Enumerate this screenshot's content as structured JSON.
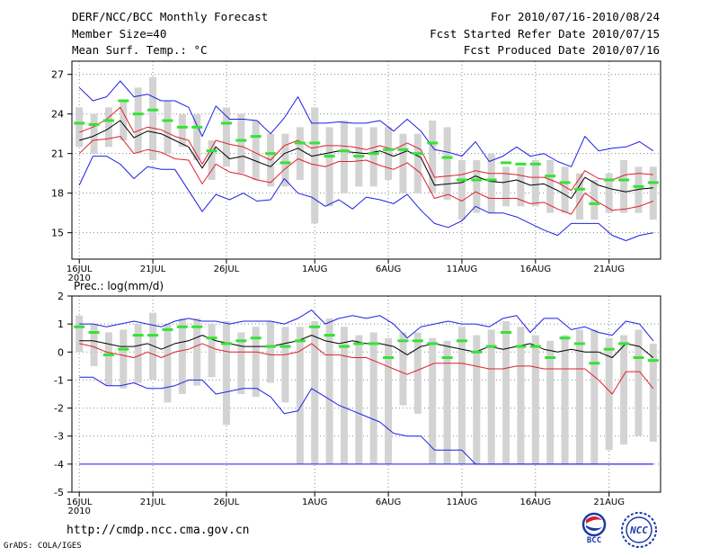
{
  "header": {
    "title": "DERF/NCC/BCC Monthly Forecast",
    "member_size": "Member Size=40",
    "variable": "Mean Surf. Temp.: °C",
    "period": "For 2010/07/16-2010/08/24",
    "started": "Fcst Started Refer Date 2010/07/15",
    "produced": "Fcst Produced Date 2010/07/16"
  },
  "footer": {
    "url": "http://cmdp.ncc.cma.gov.cn",
    "credit": "GrADS: COLA/IGES",
    "logo_bcc": "BCC",
    "logo_ncc": "NCC"
  },
  "colors": {
    "box": "#d3d3d4",
    "ensmean": "#000000",
    "spread": "#e0202c",
    "envelope": "#1f1fe6",
    "observed": "#34e334",
    "grid": "#888888"
  },
  "chart_data": [
    {
      "type": "box",
      "title": "Mean Surf. Temp.: °C",
      "ylim": [
        13,
        28
      ],
      "yticks": [
        15,
        18,
        21,
        24,
        27
      ],
      "xlim": [
        0.5,
        40.5
      ],
      "xticks": [
        {
          "day": 1,
          "label": "16JUL",
          "sublabel": "2010"
        },
        {
          "day": 6,
          "label": "21JUL"
        },
        {
          "day": 11,
          "label": "26JUL"
        },
        {
          "day": 17,
          "label": "1AUG"
        },
        {
          "day": 22,
          "label": "6AUG"
        },
        {
          "day": 27,
          "label": "11AUG"
        },
        {
          "day": 32,
          "label": "16AUG"
        },
        {
          "day": 37,
          "label": "21AUG"
        }
      ],
      "box_low": [
        21.5,
        21.0,
        21.5,
        22.0,
        21.0,
        20.5,
        21.0,
        21.5,
        20.5,
        19.0,
        20.0,
        19.5,
        19.0,
        18.5,
        18.5,
        19.0,
        15.7,
        17.0,
        18.0,
        18.5,
        18.5,
        19.0,
        18.0,
        18.0,
        18.0,
        17.5,
        16.0,
        16.5,
        16.5,
        17.0,
        17.0,
        17.0,
        16.5,
        16.5,
        16.0,
        16.0,
        16.5,
        16.5,
        16.5,
        16.0
      ],
      "box_high": [
        24.5,
        24.0,
        24.5,
        25.0,
        26.0,
        26.8,
        25.0,
        24.0,
        24.0,
        22.0,
        24.5,
        24.0,
        23.5,
        22.5,
        22.5,
        23.0,
        24.5,
        23.0,
        23.5,
        23.0,
        23.0,
        23.0,
        22.5,
        22.5,
        23.5,
        23.0,
        20.5,
        20.5,
        21.0,
        20.0,
        20.0,
        20.5,
        20.5,
        20.0,
        19.5,
        19.0,
        19.5,
        20.5,
        20.0,
        20.0
      ],
      "series": [
        {
          "name": "Upper envelope",
          "values": [
            26.0,
            25.0,
            25.3,
            26.5,
            25.3,
            25.5,
            25.0,
            25.0,
            24.5,
            22.3,
            24.6,
            23.6,
            23.6,
            23.5,
            22.5,
            23.7,
            25.3,
            23.3,
            23.3,
            23.4,
            23.3,
            23.3,
            23.5,
            22.7,
            23.6,
            22.7,
            21.3,
            21.1,
            20.8,
            21.9,
            20.4,
            20.8,
            21.5,
            20.8,
            21.0,
            20.4,
            20.0,
            22.3,
            21.2,
            21.4,
            21.5,
            21.9,
            21.2
          ]
        },
        {
          "name": "Upper spread",
          "values": [
            22.6,
            23.0,
            23.6,
            24.5,
            22.6,
            23.0,
            22.8,
            22.3,
            22.0,
            20.2,
            22.0,
            21.7,
            21.5,
            21.0,
            20.5,
            21.6,
            22.0,
            21.4,
            21.6,
            21.6,
            21.5,
            21.3,
            21.6,
            21.3,
            21.8,
            21.3,
            19.2,
            19.3,
            19.4,
            19.7,
            19.5,
            19.5,
            19.4,
            19.2,
            19.2,
            18.8,
            18.2,
            19.7,
            19.1,
            19.0,
            19.4,
            19.5,
            19.4
          ]
        },
        {
          "name": "Ensemble mean",
          "values": [
            22.0,
            22.3,
            22.8,
            23.5,
            22.2,
            22.7,
            22.5,
            22.0,
            21.5,
            19.9,
            21.5,
            20.6,
            20.8,
            20.4,
            20.0,
            21.0,
            21.4,
            20.8,
            21.0,
            21.2,
            21.1,
            21.0,
            21.2,
            20.8,
            21.2,
            20.7,
            18.6,
            18.7,
            18.8,
            19.3,
            18.9,
            18.8,
            19.0,
            18.6,
            18.7,
            18.2,
            17.6,
            19.2,
            18.6,
            18.3,
            18.1,
            18.3,
            18.4
          ]
        },
        {
          "name": "Lower spread",
          "values": [
            21.0,
            22.0,
            22.1,
            22.3,
            21.0,
            21.3,
            21.1,
            20.6,
            20.5,
            18.7,
            20.2,
            19.6,
            19.4,
            19.0,
            18.8,
            19.8,
            20.6,
            20.2,
            20.0,
            20.4,
            20.4,
            20.5,
            20.1,
            19.8,
            20.3,
            19.5,
            17.6,
            17.9,
            17.4,
            18.1,
            17.6,
            17.6,
            17.6,
            17.2,
            17.3,
            16.8,
            16.4,
            18.0,
            17.3,
            16.7,
            16.8,
            17.0,
            17.4
          ]
        },
        {
          "name": "Lower envelope",
          "values": [
            18.6,
            20.8,
            20.8,
            20.2,
            19.1,
            20.0,
            19.8,
            19.8,
            18.2,
            16.6,
            17.9,
            17.5,
            18.0,
            17.4,
            17.5,
            19.1,
            18.0,
            17.7,
            17.0,
            17.5,
            16.8,
            17.7,
            17.5,
            17.2,
            17.9,
            16.7,
            15.7,
            15.4,
            15.9,
            17.0,
            16.5,
            16.5,
            16.2,
            15.7,
            15.2,
            14.8,
            15.7,
            15.7,
            15.7,
            14.8,
            14.4,
            14.8,
            15.0
          ]
        }
      ],
      "observed": [
        23.3,
        23.2,
        23.5,
        25.0,
        24.0,
        24.3,
        23.5,
        23.0,
        23.0,
        21.2,
        23.3,
        22.0,
        22.3,
        21.0,
        20.3,
        21.8,
        21.8,
        20.8,
        21.2,
        20.8,
        21.0,
        21.3,
        21.3,
        21.0,
        21.8,
        20.7,
        19.0,
        19.0,
        19.0,
        20.3,
        20.2,
        20.2,
        19.3,
        18.8,
        18.3,
        17.2,
        19.0,
        19.0,
        18.5,
        18.8
      ]
    },
    {
      "type": "box",
      "title": "Prec.: log(mm/d)",
      "ylim": [
        -5,
        2
      ],
      "yticks": [
        -5,
        -4,
        -3,
        -2,
        -1,
        0,
        1,
        2
      ],
      "xlim": [
        0.5,
        40.5
      ],
      "xticks": [
        {
          "day": 1,
          "label": "16JUL",
          "sublabel": "2010"
        },
        {
          "day": 6,
          "label": "21JUL"
        },
        {
          "day": 11,
          "label": "26JUL"
        },
        {
          "day": 17,
          "label": "1AUG"
        },
        {
          "day": 22,
          "label": "6AUG"
        },
        {
          "day": 27,
          "label": "11AUG"
        },
        {
          "day": 32,
          "label": "16AUG"
        },
        {
          "day": 37,
          "label": "21AUG"
        }
      ],
      "box_low": [
        0.0,
        -0.5,
        -1.2,
        -1.3,
        -1.1,
        -1.0,
        -1.8,
        -1.5,
        -1.2,
        -0.9,
        -2.6,
        -1.5,
        -1.6,
        -1.1,
        -1.8,
        -4.0,
        -4.0,
        -4.0,
        -4.0,
        -4.0,
        -4.0,
        -4.0,
        -1.9,
        -2.2,
        -4.0,
        -4.0,
        -4.0,
        -4.0,
        -4.0,
        -4.0,
        -4.0,
        -4.0,
        -4.0,
        -4.0,
        -4.0,
        -4.0,
        -3.5,
        -3.3,
        -3.0,
        -3.2
      ],
      "box_high": [
        1.3,
        1.0,
        0.7,
        0.8,
        1.0,
        1.4,
        1.0,
        1.2,
        1.2,
        1.0,
        1.1,
        0.7,
        0.9,
        1.1,
        0.9,
        0.9,
        1.1,
        1.2,
        0.9,
        0.6,
        0.7,
        0.5,
        0.7,
        0.7,
        0.5,
        0.4,
        0.9,
        0.6,
        0.8,
        1.1,
        0.9,
        0.6,
        0.4,
        0.6,
        0.8,
        0.8,
        0.5,
        0.6,
        0.8,
        0.3
      ],
      "series": [
        {
          "name": "Upper envelope",
          "values": [
            1.0,
            1.0,
            0.9,
            1.0,
            1.1,
            1.0,
            0.9,
            1.1,
            1.2,
            1.1,
            1.1,
            1.0,
            1.1,
            1.1,
            1.1,
            1.0,
            1.2,
            1.5,
            1.0,
            1.2,
            1.3,
            1.2,
            1.3,
            1.0,
            0.5,
            0.9,
            1.0,
            1.1,
            1.0,
            1.0,
            0.9,
            1.2,
            1.3,
            0.7,
            1.2,
            1.2,
            0.8,
            0.9,
            0.7,
            0.6,
            1.1,
            1.0,
            0.4
          ]
        },
        {
          "name": "Ensemble mean",
          "values": [
            0.4,
            0.4,
            0.3,
            0.2,
            0.2,
            0.3,
            0.1,
            0.3,
            0.4,
            0.6,
            0.4,
            0.3,
            0.2,
            0.2,
            0.2,
            0.3,
            0.4,
            0.6,
            0.4,
            0.3,
            0.4,
            0.3,
            0.3,
            0.2,
            -0.1,
            0.2,
            0.3,
            0.2,
            0.1,
            0.0,
            0.2,
            0.1,
            0.2,
            0.3,
            0.1,
            0.0,
            0.1,
            0.0,
            0.0,
            -0.2,
            0.3,
            0.2,
            -0.2
          ]
        },
        {
          "name": "Lower spread",
          "values": [
            0.3,
            0.2,
            0.0,
            -0.1,
            -0.2,
            0.0,
            -0.2,
            0.0,
            0.1,
            0.3,
            0.1,
            0.0,
            0.0,
            0.0,
            -0.1,
            -0.1,
            0.0,
            0.3,
            -0.1,
            -0.1,
            -0.2,
            -0.2,
            -0.4,
            -0.6,
            -0.8,
            -0.6,
            -0.4,
            -0.4,
            -0.4,
            -0.5,
            -0.6,
            -0.6,
            -0.5,
            -0.5,
            -0.6,
            -0.6,
            -0.6,
            -0.6,
            -1.0,
            -1.5,
            -0.7,
            -0.7,
            -1.3
          ]
        },
        {
          "name": "Lower envelope",
          "values": [
            -0.9,
            -0.9,
            -1.2,
            -1.2,
            -1.1,
            -1.3,
            -1.3,
            -1.2,
            -1.0,
            -1.0,
            -1.5,
            -1.4,
            -1.3,
            -1.3,
            -1.6,
            -2.2,
            -2.1,
            -1.3,
            -1.6,
            -1.9,
            -2.1,
            -2.3,
            -2.5,
            -2.9,
            -3.0,
            -3.0,
            -3.5,
            -3.5,
            -3.5,
            -4.0,
            -4.0,
            -4.0,
            -4.0,
            -4.0,
            -4.0,
            -4.0,
            -4.0,
            -4.0,
            -4.0,
            -4.0,
            -4.0,
            -4.0,
            -4.0
          ]
        },
        {
          "name": "Minimum",
          "values": [
            -4.0,
            -4.0,
            -4.0,
            -4.0,
            -4.0,
            -4.0,
            -4.0,
            -4.0,
            -4.0,
            -4.0,
            -4.0,
            -4.0,
            -4.0,
            -4.0,
            -4.0,
            -4.0,
            -4.0,
            -4.0,
            -4.0,
            -4.0,
            -4.0,
            -4.0,
            -4.0,
            -4.0,
            -4.0,
            -4.0,
            -4.0,
            -4.0,
            -4.0,
            -4.0,
            -4.0,
            -4.0,
            -4.0,
            -4.0,
            -4.0,
            -4.0,
            -4.0,
            -4.0,
            -4.0,
            -4.0,
            -4.0,
            -4.0,
            -4.0
          ]
        }
      ],
      "observed": [
        0.9,
        0.7,
        -0.1,
        0.1,
        0.6,
        0.6,
        0.8,
        0.9,
        0.9,
        0.5,
        0.3,
        0.4,
        0.5,
        0.2,
        0.2,
        0.4,
        0.9,
        0.6,
        0.2,
        0.3,
        0.3,
        -0.2,
        0.4,
        0.4,
        0.3,
        -0.2,
        0.4,
        0.0,
        0.2,
        0.7,
        0.2,
        0.2,
        -0.2,
        0.5,
        0.3,
        -0.4,
        0.1,
        0.3,
        -0.2,
        -0.3
      ]
    }
  ]
}
